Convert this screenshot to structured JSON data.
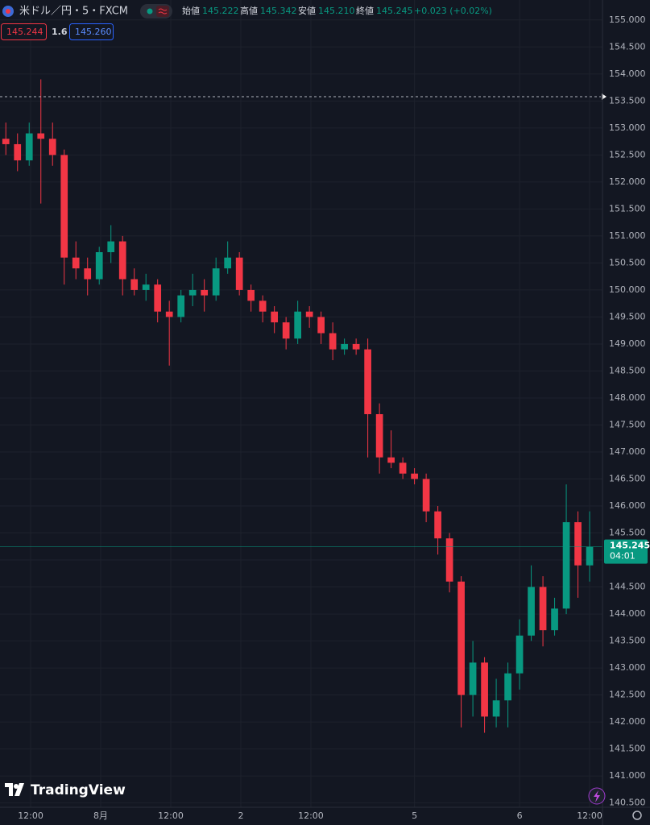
{
  "header": {
    "symbol": "米ドル／円・5・FXCM",
    "ohlc": [
      {
        "label": "始値",
        "value": "145.222"
      },
      {
        "label": "高値",
        "value": "145.342"
      },
      {
        "label": "安値",
        "value": "145.210"
      },
      {
        "label": "終値",
        "value": "145.245"
      }
    ],
    "change": "+0.023 (+0.02%)",
    "bid": "145.244",
    "spread": "1.6",
    "ask": "145.260"
  },
  "logo": "TradingView",
  "chart_data": {
    "type": "candlestick",
    "x": [
      1,
      3,
      5,
      7,
      9,
      11,
      13,
      15,
      17,
      19,
      21,
      23,
      25,
      27,
      29,
      31,
      33,
      35,
      37,
      39,
      41,
      43,
      45,
      47,
      49,
      51,
      53,
      55,
      57,
      59,
      61,
      63,
      65,
      67,
      69,
      71,
      73,
      75,
      77,
      79,
      81,
      83,
      85,
      87,
      89,
      91,
      93,
      95,
      97,
      99,
      101
    ],
    "open": [
      152.8,
      152.7,
      152.4,
      152.9,
      152.8,
      152.5,
      150.6,
      150.4,
      150.2,
      150.7,
      150.9,
      150.2,
      150.0,
      150.1,
      149.6,
      149.5,
      149.9,
      150.0,
      149.9,
      150.4,
      150.6,
      150.0,
      149.8,
      149.6,
      149.4,
      149.1,
      149.6,
      149.5,
      149.2,
      148.9,
      149.0,
      148.9,
      147.7,
      146.9,
      146.8,
      146.6,
      146.5,
      145.9,
      145.4,
      144.6,
      142.5,
      143.1,
      142.1,
      142.4,
      142.9,
      143.6,
      144.5,
      143.7,
      144.1,
      145.7,
      144.9
    ],
    "high": [
      153.1,
      152.9,
      153.1,
      153.9,
      153.1,
      152.6,
      150.9,
      150.6,
      150.8,
      151.2,
      151.0,
      150.4,
      150.3,
      150.2,
      149.8,
      150.0,
      150.3,
      150.2,
      150.6,
      150.9,
      150.7,
      150.1,
      149.9,
      149.7,
      149.5,
      149.8,
      149.7,
      149.6,
      149.4,
      149.1,
      149.1,
      149.1,
      147.9,
      147.4,
      146.9,
      146.7,
      146.6,
      146.0,
      145.5,
      144.7,
      143.5,
      143.2,
      142.8,
      143.1,
      143.9,
      144.9,
      144.7,
      144.3,
      146.4,
      145.9,
      145.9
    ],
    "low": [
      152.5,
      152.2,
      152.3,
      151.6,
      152.3,
      150.1,
      150.2,
      149.9,
      150.1,
      150.5,
      149.9,
      149.9,
      149.8,
      149.4,
      148.6,
      149.4,
      149.7,
      149.6,
      149.8,
      150.3,
      149.9,
      149.6,
      149.4,
      149.2,
      148.9,
      149.0,
      149.3,
      149.0,
      148.7,
      148.8,
      148.8,
      146.9,
      146.6,
      146.7,
      146.5,
      146.4,
      145.7,
      145.1,
      144.4,
      141.9,
      142.1,
      141.8,
      141.9,
      141.9,
      142.6,
      143.5,
      143.4,
      143.6,
      144.0,
      144.3,
      144.6
    ],
    "close": [
      152.7,
      152.4,
      152.9,
      152.8,
      152.5,
      150.6,
      150.4,
      150.2,
      150.7,
      150.9,
      150.2,
      150.0,
      150.1,
      149.6,
      149.5,
      149.9,
      150.0,
      149.9,
      150.4,
      150.6,
      150.0,
      149.8,
      149.6,
      149.4,
      149.1,
      149.6,
      149.5,
      149.2,
      148.9,
      149.0,
      148.9,
      147.7,
      146.9,
      146.8,
      146.6,
      146.5,
      145.9,
      145.4,
      144.6,
      142.5,
      143.1,
      142.1,
      142.4,
      142.9,
      143.6,
      144.5,
      143.7,
      144.1,
      145.7,
      144.9,
      145.245
    ],
    "up_color": "#089981",
    "down_color": "#f23645",
    "xlim": [
      0,
      103.2
    ],
    "ylim": [
      140.45,
      155.37
    ],
    "xticks": [
      {
        "value": 5.25,
        "label": "12:00"
      },
      {
        "value": 17.25,
        "label": "8月"
      },
      {
        "value": 29.25,
        "label": "12:00"
      },
      {
        "value": 41.25,
        "label": "2"
      },
      {
        "value": 53.25,
        "label": "12:00"
      },
      {
        "value": 71,
        "label": "5"
      },
      {
        "value": 89,
        "label": "6"
      },
      {
        "value": 101,
        "label": "12:00"
      }
    ],
    "yticks": [
      {
        "value": 140.5,
        "label": "140.500"
      },
      {
        "value": 141,
        "label": "141.000"
      },
      {
        "value": 141.5,
        "label": "141.500"
      },
      {
        "value": 142,
        "label": "142.000"
      },
      {
        "value": 142.5,
        "label": "142.500"
      },
      {
        "value": 143,
        "label": "143.000"
      },
      {
        "value": 143.5,
        "label": "143.500"
      },
      {
        "value": 144,
        "label": "144.000"
      },
      {
        "value": 144.5,
        "label": "144.500"
      },
      {
        "value": 145,
        "label": "145.000"
      },
      {
        "value": 145.5,
        "label": "145.500"
      },
      {
        "value": 146,
        "label": "146.000"
      },
      {
        "value": 146.5,
        "label": "146.500"
      },
      {
        "value": 147,
        "label": "147.000"
      },
      {
        "value": 147.5,
        "label": "147.500"
      },
      {
        "value": 148,
        "label": "148.000"
      },
      {
        "value": 148.5,
        "label": "148.500"
      },
      {
        "value": 149,
        "label": "149.000"
      },
      {
        "value": 149.5,
        "label": "149.500"
      },
      {
        "value": 150,
        "label": "150.000"
      },
      {
        "value": 150.5,
        "label": "150.500"
      },
      {
        "value": 151,
        "label": "151.000"
      },
      {
        "value": 151.5,
        "label": "151.500"
      },
      {
        "value": 152,
        "label": "152.000"
      },
      {
        "value": 152.5,
        "label": "152.500"
      },
      {
        "value": 153,
        "label": "153.000"
      },
      {
        "value": 153.5,
        "label": "153.500"
      },
      {
        "value": 154,
        "label": "154.000"
      },
      {
        "value": 154.5,
        "label": "154.500"
      },
      {
        "value": 155,
        "label": "155.000"
      }
    ],
    "grid": true,
    "ref_line": 153.58,
    "countdown": "04:01"
  }
}
